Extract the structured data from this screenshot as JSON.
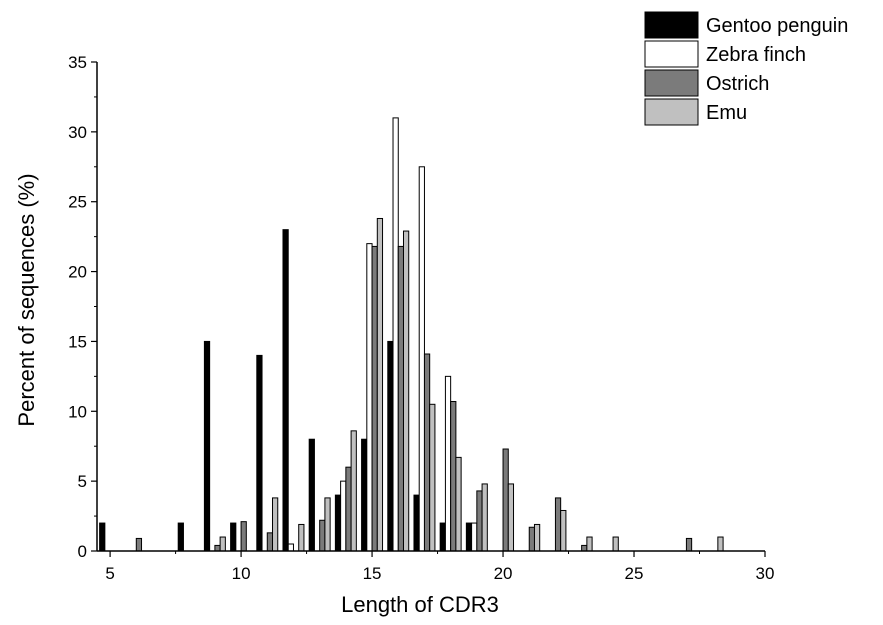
{
  "chart_data": {
    "type": "bar",
    "title": "",
    "xlabel": "Length of CDR3",
    "ylabel": "Percent of sequences (%)",
    "xlim": [
      4.5,
      30
    ],
    "ylim": [
      0,
      35
    ],
    "xticks": [
      5,
      10,
      15,
      20,
      25,
      30
    ],
    "yticks": [
      0,
      5,
      10,
      15,
      20,
      25,
      30,
      35
    ],
    "grid": false,
    "legend_position": "top-right",
    "bar_group_offsets": [
      -0.3,
      -0.1,
      0.1,
      0.3
    ],
    "series": [
      {
        "name": "Gentoo penguin",
        "color": "#000000",
        "points": [
          [
            5,
            2
          ],
          [
            8,
            2
          ],
          [
            9,
            15
          ],
          [
            10,
            2
          ],
          [
            11,
            14
          ],
          [
            12,
            23
          ],
          [
            13,
            8
          ],
          [
            14,
            4
          ],
          [
            15,
            8
          ],
          [
            16,
            15
          ],
          [
            17,
            4
          ],
          [
            18,
            2
          ],
          [
            19,
            2
          ]
        ]
      },
      {
        "name": "Zebra finch",
        "color": "#ffffff",
        "points": [
          [
            12,
            0.5
          ],
          [
            14,
            5
          ],
          [
            15,
            22
          ],
          [
            16,
            31
          ],
          [
            17,
            27.5
          ],
          [
            18,
            12.5
          ],
          [
            19,
            2
          ]
        ]
      },
      {
        "name": "Ostrich",
        "color": "#7b7b7b",
        "points": [
          [
            6,
            0.9
          ],
          [
            9,
            0.4
          ],
          [
            10,
            2.1
          ],
          [
            11,
            1.3
          ],
          [
            13,
            2.2
          ],
          [
            14,
            6
          ],
          [
            15,
            21.8
          ],
          [
            16,
            21.8
          ],
          [
            17,
            14.1
          ],
          [
            18,
            10.7
          ],
          [
            19,
            4.3
          ],
          [
            20,
            7.3
          ],
          [
            21,
            1.7
          ],
          [
            22,
            3.8
          ],
          [
            23,
            0.4
          ],
          [
            27,
            0.9
          ]
        ]
      },
      {
        "name": "Emu",
        "color": "#c0c0c0",
        "points": [
          [
            9,
            1
          ],
          [
            11,
            3.8
          ],
          [
            12,
            1.9
          ],
          [
            13,
            3.8
          ],
          [
            14,
            8.6
          ],
          [
            15,
            23.8
          ],
          [
            16,
            22.9
          ],
          [
            17,
            10.5
          ],
          [
            18,
            6.7
          ],
          [
            19,
            4.8
          ],
          [
            20,
            4.8
          ],
          [
            21,
            1.9
          ],
          [
            22,
            2.9
          ],
          [
            23,
            1
          ],
          [
            24,
            1
          ],
          [
            28,
            1
          ]
        ]
      }
    ]
  }
}
